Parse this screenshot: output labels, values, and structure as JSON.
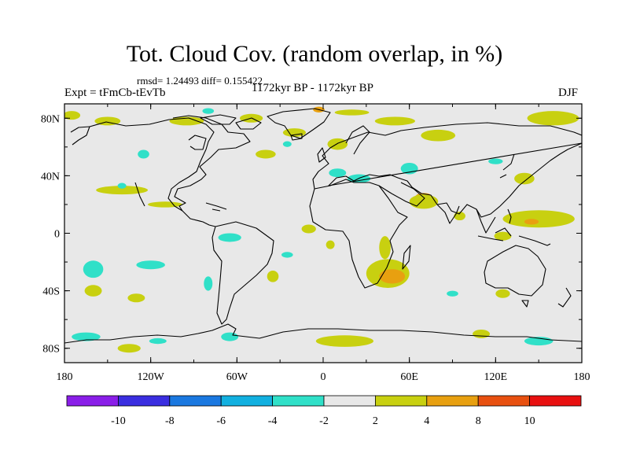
{
  "title": "Tot. Cloud Cov. (random overlap, in %)",
  "stats_text": "rmsd= 1.24493 diff= 0.155422",
  "experiment_text": "Expt = tFmCb-tEvTb",
  "period_text": "1172kyr BP - 1172kyr BP",
  "season": "DJF",
  "axes": {
    "lat_ticks": [
      "80N",
      "40N",
      "0",
      "40S",
      "80S"
    ],
    "lat_values": [
      80,
      40,
      0,
      -40,
      -80
    ],
    "lon_ticks": [
      "180",
      "120W",
      "60W",
      "0",
      "60E",
      "120E",
      "180"
    ],
    "lon_values": [
      -180,
      -120,
      -60,
      0,
      60,
      120,
      180
    ],
    "lon_range": [
      -180,
      180
    ],
    "lat_range": [
      -90,
      90
    ]
  },
  "colorbar": {
    "labels": [
      "-10",
      "-8",
      "-6",
      "-4",
      "-2",
      "2",
      "4",
      "8",
      "10"
    ],
    "colors": [
      "#8a1ee8",
      "#3a2ee0",
      "#1a78e0",
      "#12b0e0",
      "#30e0c8",
      "#e8e8e8",
      "#c8d010",
      "#e8a010",
      "#e85010",
      "#e81010"
    ]
  },
  "background_color": "#e8e8e8",
  "anomaly_regions": [
    {
      "level": 4,
      "color": "#c8d010",
      "lon": -175,
      "lat": 82,
      "rx": 6,
      "ry": 3
    },
    {
      "level": 4,
      "color": "#c8d010",
      "lon": -150,
      "lat": 78,
      "rx": 9,
      "ry": 3
    },
    {
      "level": 4,
      "color": "#c8d010",
      "lon": -95,
      "lat": 78,
      "rx": 12,
      "ry": 3
    },
    {
      "level": 4,
      "color": "#c8d010",
      "lon": -50,
      "lat": 80,
      "rx": 8,
      "ry": 3
    },
    {
      "level": 4,
      "color": "#c8d010",
      "lon": -20,
      "lat": 70,
      "rx": 8,
      "ry": 3
    },
    {
      "level": 4,
      "color": "#c8d010",
      "lon": 20,
      "lat": 84,
      "rx": 12,
      "ry": 2
    },
    {
      "level": 8,
      "color": "#e8a010",
      "lon": -3,
      "lat": 86,
      "rx": 4,
      "ry": 2
    },
    {
      "level": 4,
      "color": "#c8d010",
      "lon": 50,
      "lat": 78,
      "rx": 14,
      "ry": 3
    },
    {
      "level": 4,
      "color": "#c8d010",
      "lon": 10,
      "lat": 62,
      "rx": 7,
      "ry": 4
    },
    {
      "level": 4,
      "color": "#c8d010",
      "lon": 80,
      "lat": 68,
      "rx": 12,
      "ry": 4
    },
    {
      "level": 4,
      "color": "#c8d010",
      "lon": 160,
      "lat": 80,
      "rx": 18,
      "ry": 5
    },
    {
      "level": 4,
      "color": "#c8d010",
      "lon": -40,
      "lat": 55,
      "rx": 7,
      "ry": 3
    },
    {
      "level": 4,
      "color": "#c8d010",
      "lon": 140,
      "lat": 38,
      "rx": 7,
      "ry": 4
    },
    {
      "level": 4,
      "color": "#c8d010",
      "lon": -140,
      "lat": 30,
      "rx": 18,
      "ry": 3
    },
    {
      "level": 4,
      "color": "#c8d010",
      "lon": -110,
      "lat": 20,
      "rx": 12,
      "ry": 2
    },
    {
      "level": 8,
      "color": "#e8a010",
      "lon": 70,
      "lat": 25,
      "rx": 6,
      "ry": 3
    },
    {
      "level": 4,
      "color": "#c8d010",
      "lon": 70,
      "lat": 22,
      "rx": 10,
      "ry": 5
    },
    {
      "level": 4,
      "color": "#c8d010",
      "lon": 95,
      "lat": 12,
      "rx": 4,
      "ry": 3
    },
    {
      "level": 4,
      "color": "#c8d010",
      "lon": 150,
      "lat": 10,
      "rx": 25,
      "ry": 6
    },
    {
      "level": 8,
      "color": "#e8a010",
      "lon": 145,
      "lat": 8,
      "rx": 5,
      "ry": 2
    },
    {
      "level": 4,
      "color": "#c8d010",
      "lon": 125,
      "lat": -2,
      "rx": 6,
      "ry": 3
    },
    {
      "level": 4,
      "color": "#c8d010",
      "lon": -10,
      "lat": 3,
      "rx": 5,
      "ry": 3
    },
    {
      "level": 4,
      "color": "#c8d010",
      "lon": 5,
      "lat": -8,
      "rx": 3,
      "ry": 3
    },
    {
      "level": 4,
      "color": "#c8d010",
      "lon": -35,
      "lat": -30,
      "rx": 4,
      "ry": 4
    },
    {
      "level": 4,
      "color": "#c8d010",
      "lon": 43,
      "lat": -10,
      "rx": 4,
      "ry": 8
    },
    {
      "level": 4,
      "color": "#c8d010",
      "lon": 45,
      "lat": -28,
      "rx": 15,
      "ry": 10
    },
    {
      "level": 8,
      "color": "#e8a010",
      "lon": 48,
      "lat": -30,
      "rx": 9,
      "ry": 5
    },
    {
      "level": 4,
      "color": "#c8d010",
      "lon": -160,
      "lat": -40,
      "rx": 6,
      "ry": 4
    },
    {
      "level": 4,
      "color": "#c8d010",
      "lon": -130,
      "lat": -45,
      "rx": 6,
      "ry": 3
    },
    {
      "level": 4,
      "color": "#c8d010",
      "lon": 125,
      "lat": -42,
      "rx": 5,
      "ry": 3
    },
    {
      "level": 4,
      "color": "#c8d010",
      "lon": 15,
      "lat": -75,
      "rx": 20,
      "ry": 4
    },
    {
      "level": 4,
      "color": "#c8d010",
      "lon": -135,
      "lat": -80,
      "rx": 8,
      "ry": 3
    },
    {
      "level": 4,
      "color": "#c8d010",
      "lon": 110,
      "lat": -70,
      "rx": 6,
      "ry": 3
    },
    {
      "level": -3,
      "color": "#30e0c8",
      "lon": -160,
      "lat": -25,
      "rx": 7,
      "ry": 6
    },
    {
      "level": -3,
      "color": "#30e0c8",
      "lon": -120,
      "lat": -22,
      "rx": 10,
      "ry": 3
    },
    {
      "level": -3,
      "color": "#30e0c8",
      "lon": -65,
      "lat": -3,
      "rx": 8,
      "ry": 3
    },
    {
      "level": -3,
      "color": "#30e0c8",
      "lon": -125,
      "lat": 55,
      "rx": 4,
      "ry": 3
    },
    {
      "level": -3,
      "color": "#30e0c8",
      "lon": -140,
      "lat": 33,
      "rx": 3,
      "ry": 2
    },
    {
      "level": -3,
      "color": "#30e0c8",
      "lon": -80,
      "lat": 85,
      "rx": 4,
      "ry": 2
    },
    {
      "level": -3,
      "color": "#30e0c8",
      "lon": -25,
      "lat": 62,
      "rx": 3,
      "ry": 2
    },
    {
      "level": -3,
      "color": "#30e0c8",
      "lon": 10,
      "lat": 42,
      "rx": 6,
      "ry": 3
    },
    {
      "level": -3,
      "color": "#30e0c8",
      "lon": 25,
      "lat": 38,
      "rx": 8,
      "ry": 3
    },
    {
      "level": -3,
      "color": "#30e0c8",
      "lon": 60,
      "lat": 45,
      "rx": 6,
      "ry": 4
    },
    {
      "level": -3,
      "color": "#30e0c8",
      "lon": 120,
      "lat": 50,
      "rx": 5,
      "ry": 2
    },
    {
      "level": -3,
      "color": "#30e0c8",
      "lon": -25,
      "lat": -15,
      "rx": 4,
      "ry": 2
    },
    {
      "level": -3,
      "color": "#30e0c8",
      "lon": -80,
      "lat": -35,
      "rx": 3,
      "ry": 5
    },
    {
      "level": -3,
      "color": "#30e0c8",
      "lon": -165,
      "lat": -72,
      "rx": 10,
      "ry": 3
    },
    {
      "level": -3,
      "color": "#30e0c8",
      "lon": -115,
      "lat": -75,
      "rx": 6,
      "ry": 2
    },
    {
      "level": -3,
      "color": "#30e0c8",
      "lon": -65,
      "lat": -72,
      "rx": 6,
      "ry": 3
    },
    {
      "level": -3,
      "color": "#30e0c8",
      "lon": 150,
      "lat": -75,
      "rx": 10,
      "ry": 3
    },
    {
      "level": -3,
      "color": "#30e0c8",
      "lon": 90,
      "lat": -42,
      "rx": 4,
      "ry": 2
    }
  ]
}
